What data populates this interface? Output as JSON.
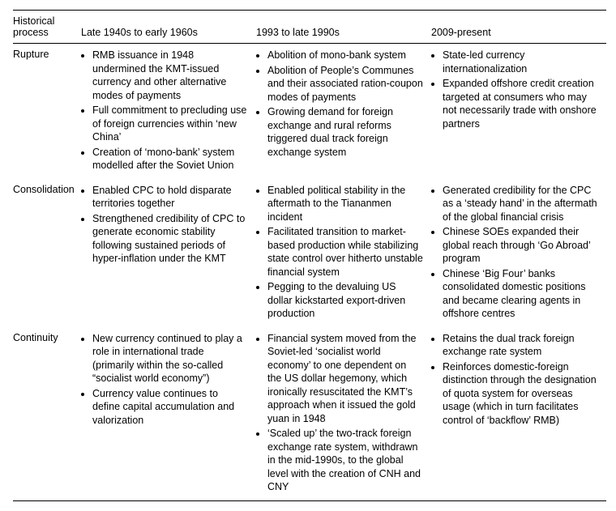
{
  "header": {
    "col0": "Historical process",
    "col1": "Late 1940s to early 1960s",
    "col2": "1993 to late 1990s",
    "col3": "2009-present"
  },
  "rows": [
    {
      "label": "Rupture",
      "cells": [
        [
          "RMB issuance in 1948 undermined the KMT-issued currency and other alternative modes of payments",
          "Full commitment to precluding use of foreign currencies within ‘new China’",
          "Creation of ‘mono-bank’ system modelled after the Soviet Union"
        ],
        [
          "Abolition of mono-bank system",
          "Abolition of People’s Communes and their associated ration-coupon modes of payments",
          "Growing demand for foreign exchange and rural reforms triggered dual track foreign exchange system"
        ],
        [
          "State-led currency internationalization",
          "Expanded offshore credit creation targeted at consumers who may not necessarily trade with onshore partners"
        ]
      ]
    },
    {
      "label": "Consolidation",
      "cells": [
        [
          "Enabled CPC to hold disparate territories together",
          "Strengthened credibility of CPC to generate economic stability following sustained periods of hyper-inflation under the KMT"
        ],
        [
          "Enabled political stability in the aftermath to the Tiananmen incident",
          "Facilitated transition to market-based production while stabilizing state control over hitherto unstable financial system",
          "Pegging to the devaluing US dollar kickstarted export-driven production"
        ],
        [
          "Generated credibility for the CPC as a ‘steady hand’ in the aftermath of the global financial crisis",
          "Chinese SOEs expanded their global reach through ‘Go Abroad’ program",
          "Chinese ‘Big Four’ banks consolidated domestic positions and became clearing agents in offshore centres"
        ]
      ]
    },
    {
      "label": "Continuity",
      "cells": [
        [
          "New currency continued to play a role in international trade (primarily within the so-called “socialist world economy”)",
          "Currency value continues to define capital accumulation and valorization"
        ],
        [
          "Financial system moved from the Soviet-led ‘socialist world economy’ to one dependent on the US dollar hegemony, which ironically resuscitated the KMT’s approach when it issued the gold yuan in 1948",
          "‘Scaled up’ the two-track foreign exchange rate system, withdrawn in the mid-1990s, to the global level with the creation of CNH and CNY"
        ],
        [
          "Retains the dual track foreign exchange rate system",
          "Reinforces domestic-foreign distinction through the designation of quota system for overseas usage (which in turn facilitates control of ‘backflow’ RMB)"
        ]
      ]
    }
  ]
}
